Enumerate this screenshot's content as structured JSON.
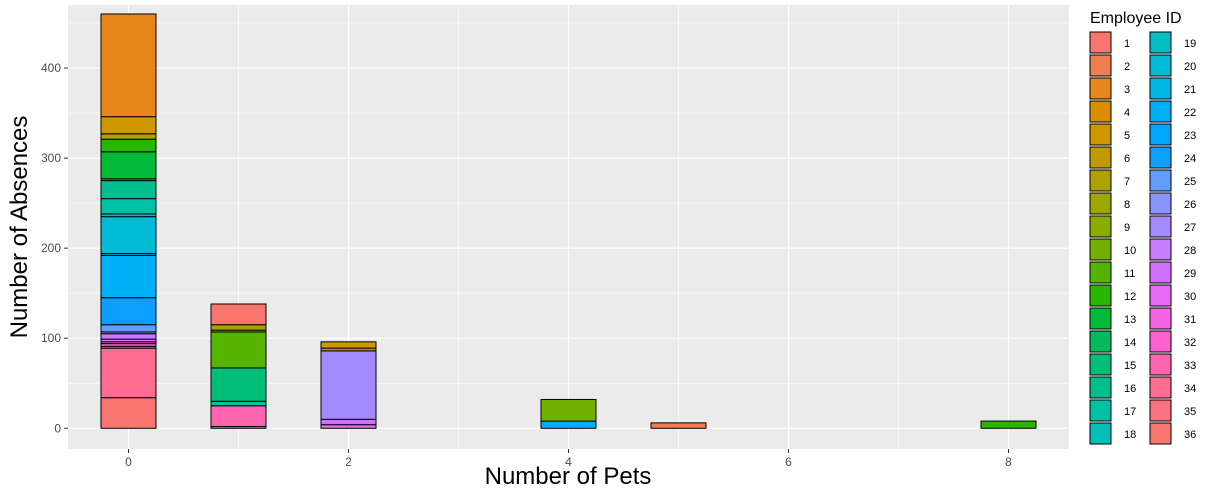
{
  "chart_data": {
    "type": "bar",
    "stacked": true,
    "xlabel": "Number of Pets",
    "ylabel": "Number of Absences",
    "xlim": [
      -0.55,
      8.55
    ],
    "ylim": [
      -23,
      470
    ],
    "x_ticks": [
      0,
      2,
      4,
      6,
      8
    ],
    "y_ticks": [
      0,
      100,
      200,
      300,
      400
    ],
    "grid": true,
    "legend": {
      "title": "Employee ID",
      "placement": "right",
      "entries": [
        {
          "label": "1",
          "color": "#F8766D"
        },
        {
          "label": "2",
          "color": "#F17E4F"
        },
        {
          "label": "3",
          "color": "#E7861B"
        },
        {
          "label": "4",
          "color": "#DB8E00"
        },
        {
          "label": "5",
          "color": "#CE9700"
        },
        {
          "label": "6",
          "color": "#C09B00"
        },
        {
          "label": "7",
          "color": "#AFA100"
        },
        {
          "label": "8",
          "color": "#9DA700"
        },
        {
          "label": "9",
          "color": "#8AAB00"
        },
        {
          "label": "10",
          "color": "#72B000"
        },
        {
          "label": "11",
          "color": "#55B400"
        },
        {
          "label": "12",
          "color": "#28B700"
        },
        {
          "label": "13",
          "color": "#00BA38"
        },
        {
          "label": "14",
          "color": "#00BC5C"
        },
        {
          "label": "15",
          "color": "#00BE78"
        },
        {
          "label": "16",
          "color": "#00BF8F"
        },
        {
          "label": "17",
          "color": "#00C0A5"
        },
        {
          "label": "18",
          "color": "#00C0B8"
        },
        {
          "label": "19",
          "color": "#00BFC4"
        },
        {
          "label": "20",
          "color": "#00BBD6"
        },
        {
          "label": "21",
          "color": "#00B6E7"
        },
        {
          "label": "22",
          "color": "#00B0F6"
        },
        {
          "label": "23",
          "color": "#00A5FF"
        },
        {
          "label": "24",
          "color": "#0BA0FF"
        },
        {
          "label": "25",
          "color": "#619CFF"
        },
        {
          "label": "26",
          "color": "#8B93FF"
        },
        {
          "label": "27",
          "color": "#A58AFF"
        },
        {
          "label": "28",
          "color": "#C77CFF"
        },
        {
          "label": "29",
          "color": "#D16FFF"
        },
        {
          "label": "30",
          "color": "#E76BF3"
        },
        {
          "label": "31",
          "color": "#F564E3"
        },
        {
          "label": "32",
          "color": "#FD61D1"
        },
        {
          "label": "33",
          "color": "#FF64B0"
        },
        {
          "label": "34",
          "color": "#FF6C91"
        },
        {
          "label": "35",
          "color": "#FC717F"
        },
        {
          "label": "36",
          "color": "#F8766D"
        }
      ]
    },
    "bars": [
      {
        "x": 0,
        "segments": [
          {
            "id": "36",
            "value": 34
          },
          {
            "id": "34",
            "value": 55
          },
          {
            "id": "33",
            "value": 2
          },
          {
            "id": "32",
            "value": 3
          },
          {
            "id": "31",
            "value": 2
          },
          {
            "id": "30",
            "value": 3
          },
          {
            "id": "28",
            "value": 6
          },
          {
            "id": "26",
            "value": 2
          },
          {
            "id": "25",
            "value": 8
          },
          {
            "id": "24",
            "value": 30
          },
          {
            "id": "22",
            "value": 47
          },
          {
            "id": "21",
            "value": 2
          },
          {
            "id": "20",
            "value": 41
          },
          {
            "id": "19",
            "value": 3
          },
          {
            "id": "17",
            "value": 17
          },
          {
            "id": "16",
            "value": 20
          },
          {
            "id": "15",
            "value": 2
          },
          {
            "id": "13",
            "value": 30
          },
          {
            "id": "12",
            "value": 14
          },
          {
            "id": "7",
            "value": 6
          },
          {
            "id": "5",
            "value": 19
          },
          {
            "id": "3",
            "value": 114
          }
        ]
      },
      {
        "x": 1,
        "segments": [
          {
            "id": "10",
            "value": 2
          },
          {
            "id": "33",
            "value": 23
          },
          {
            "id": "17",
            "value": 5
          },
          {
            "id": "15",
            "value": 37
          },
          {
            "id": "11",
            "value": 40
          },
          {
            "id": "7",
            "value": 2
          },
          {
            "id": "8",
            "value": 6
          },
          {
            "id": "1",
            "value": 23
          }
        ]
      },
      {
        "x": 2,
        "segments": [
          {
            "id": "30",
            "value": 4
          },
          {
            "id": "29",
            "value": 6
          },
          {
            "id": "27",
            "value": 76
          },
          {
            "id": "6",
            "value": 3
          },
          {
            "id": "5",
            "value": 7
          }
        ]
      },
      {
        "x": 4,
        "segments": [
          {
            "id": "22",
            "value": 8
          },
          {
            "id": "10",
            "value": 24
          }
        ]
      },
      {
        "x": 5,
        "segments": [
          {
            "id": "2",
            "value": 6
          }
        ]
      },
      {
        "x": 8,
        "segments": [
          {
            "id": "12",
            "value": 8
          }
        ]
      }
    ]
  }
}
